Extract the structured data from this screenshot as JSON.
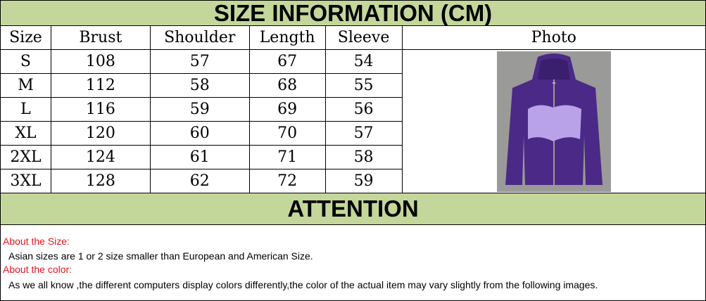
{
  "title": "SIZE INFORMATION (CM)",
  "table": {
    "headers": [
      "Size",
      "Brust",
      "Shoulder",
      "Length",
      "Sleeve",
      "Photo"
    ],
    "rows": [
      [
        "S",
        "108",
        "57",
        "67",
        "54"
      ],
      [
        "M",
        "112",
        "58",
        "68",
        "55"
      ],
      [
        "L",
        "116",
        "59",
        "69",
        "56"
      ],
      [
        "XL",
        "120",
        "60",
        "70",
        "57"
      ],
      [
        "2XL",
        "124",
        "61",
        "71",
        "58"
      ],
      [
        "3XL",
        "128",
        "62",
        "72",
        "59"
      ]
    ]
  },
  "attention": "ATTENTION",
  "notes": {
    "size_heading": "About the Size:",
    "size_text": "Asian sizes are 1 or 2 size smaller than European and American Size.",
    "color_heading": "About the color:",
    "color_text": "As we all know ,the different computers display colors differently,the color of the actual item may vary slightly from the following images."
  },
  "colors": {
    "band": "#c4d79b",
    "heading_red": "#e8141c",
    "hoodie": "#4a2a86"
  }
}
